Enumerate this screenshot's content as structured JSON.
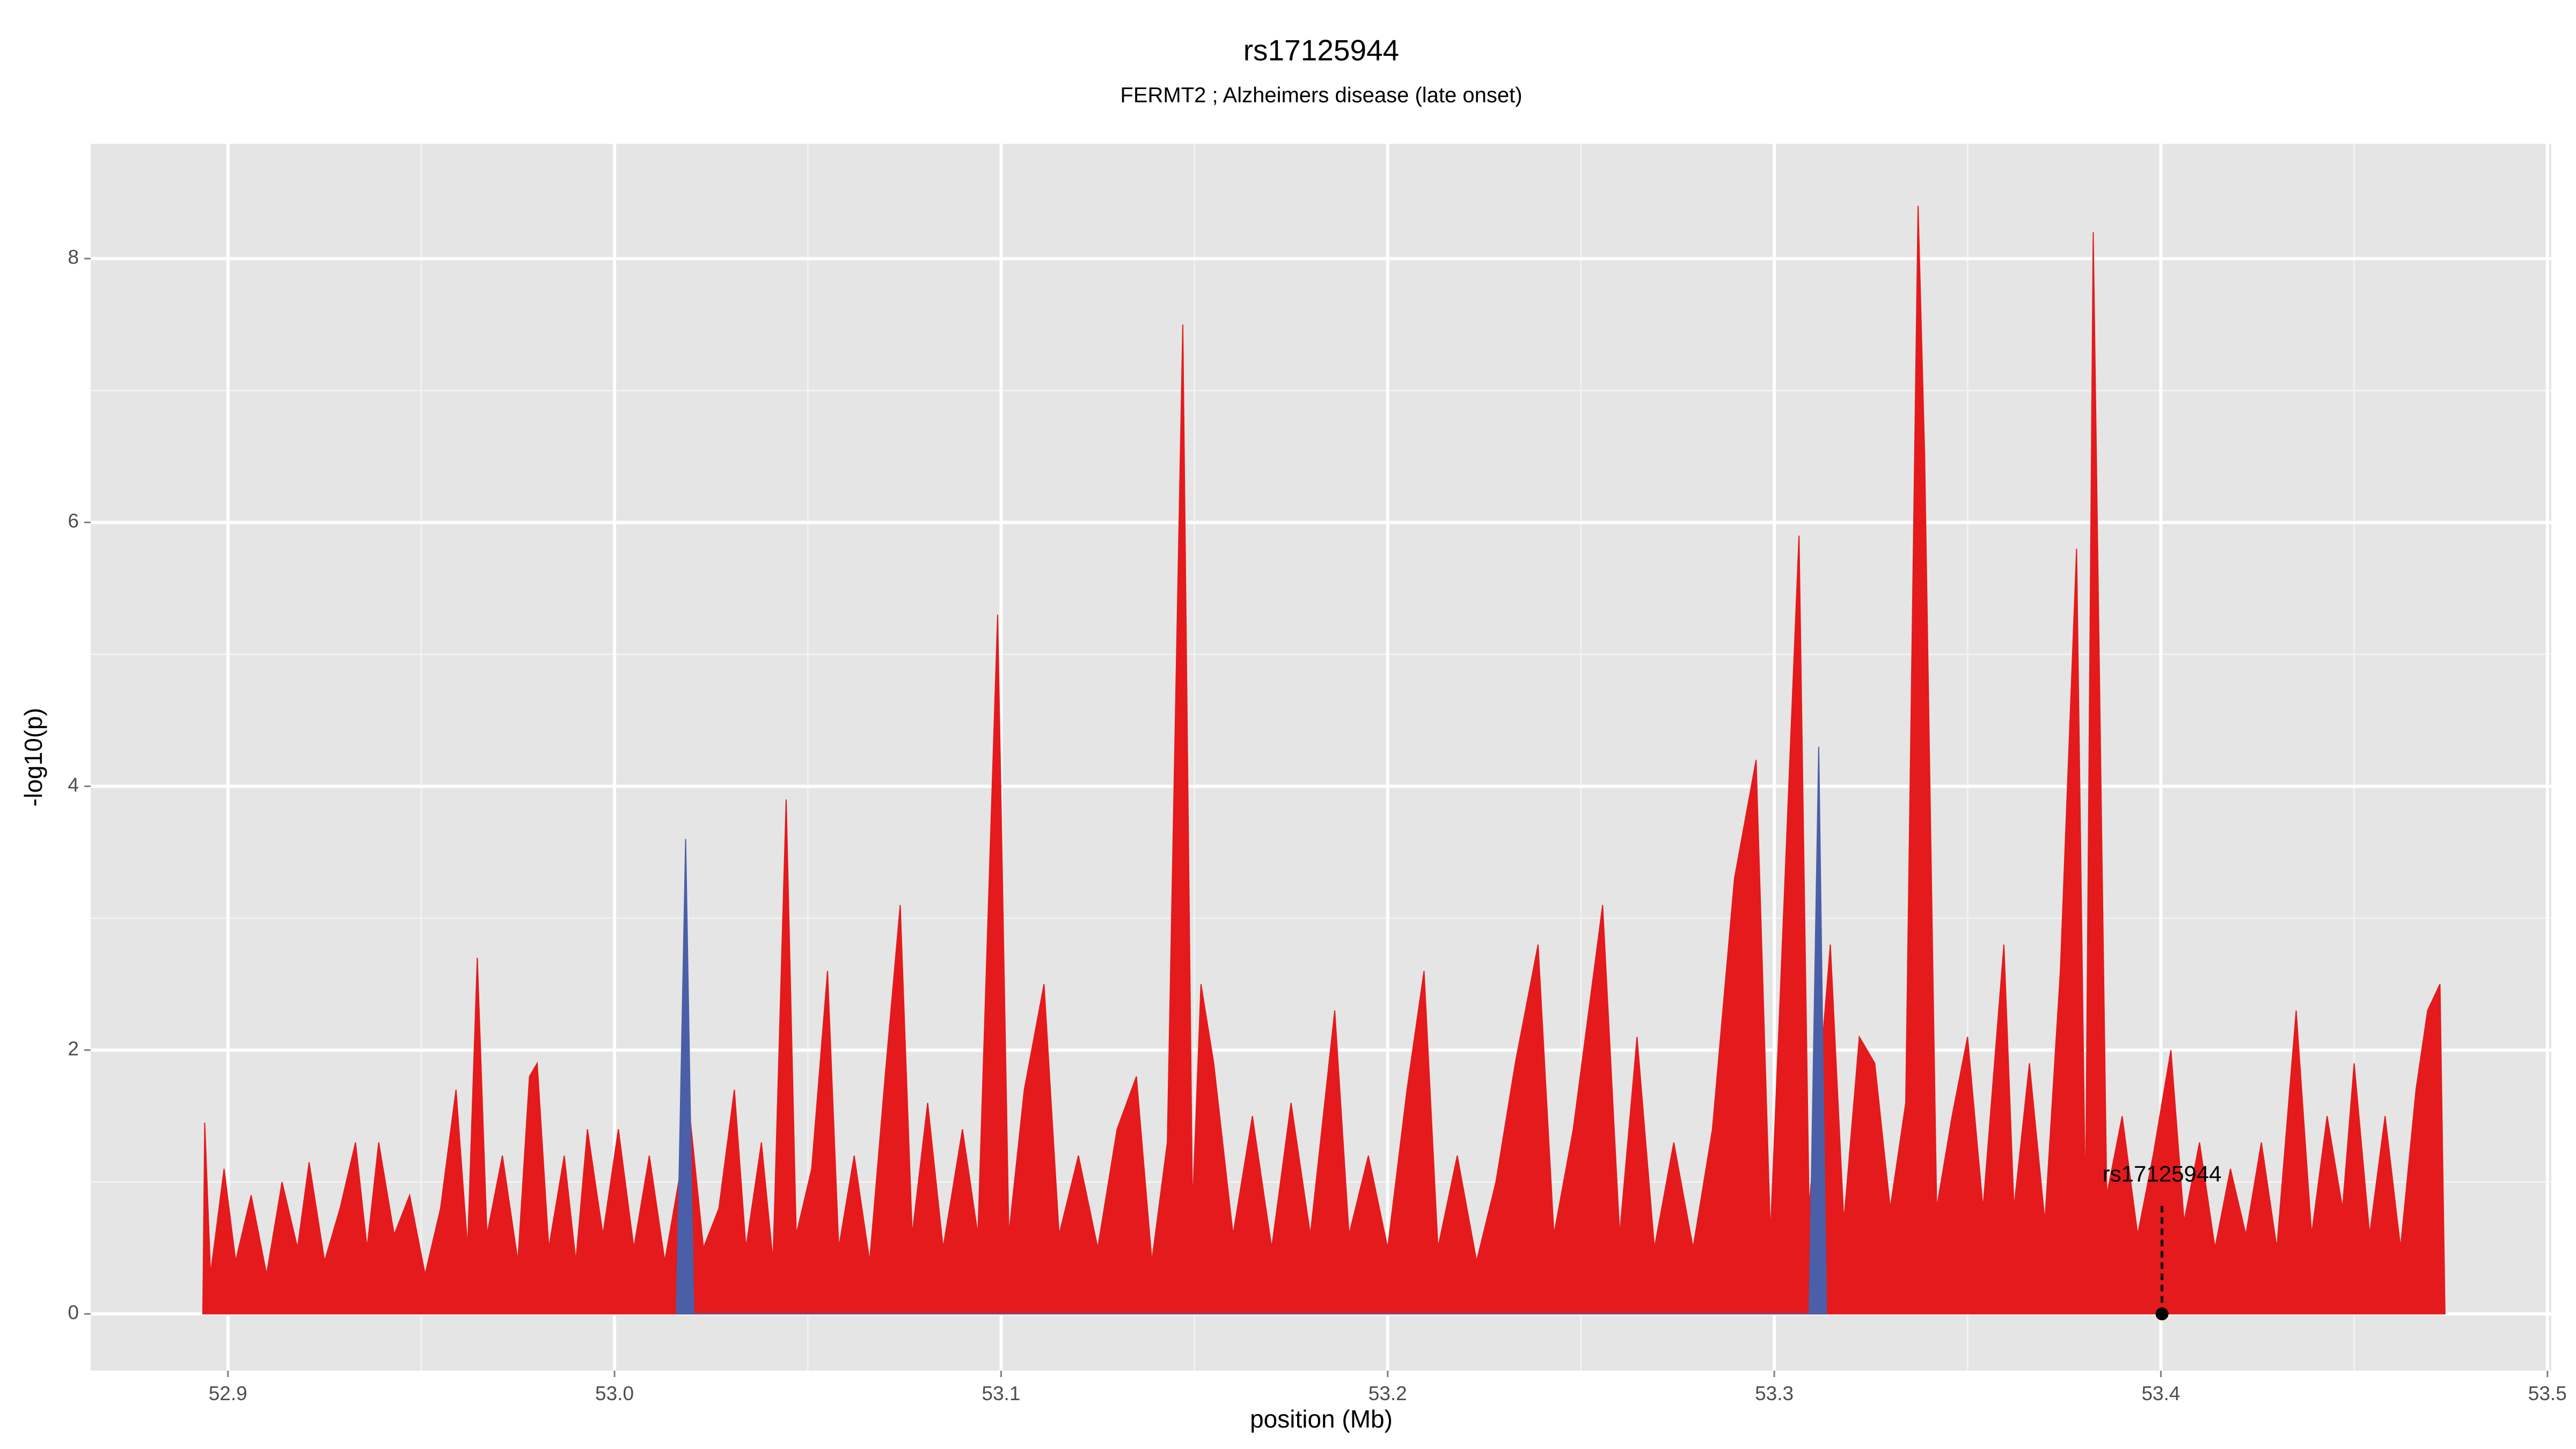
{
  "chart_data": {
    "type": "area",
    "title": "rs17125944",
    "subtitle": "FERMT2 ; Alzheimers disease (late onset)",
    "x_label": "position (Mb)",
    "y_label": "-log10(p)",
    "xlim": [
      52.8645,
      53.501
    ],
    "ylim": [
      -0.43,
      8.87
    ],
    "xticks": [
      52.9,
      {
        "value": 53.0,
        "label": "53.0"
      },
      53.1,
      53.2,
      53.3,
      53.4,
      53.5
    ],
    "yticks": [
      0,
      2,
      4,
      6,
      8
    ],
    "x_minor_grid": [
      52.95,
      53.05,
      53.15,
      53.25,
      53.35,
      53.45
    ],
    "y_minor_grid": [
      1,
      3,
      5,
      7
    ],
    "grid": true,
    "series": [
      {
        "color": "#e41a1c",
        "x": [
          52.8935,
          52.894,
          52.8955,
          52.899,
          52.902,
          52.906,
          52.91,
          52.914,
          52.918,
          52.921,
          52.925,
          52.929,
          52.933,
          52.936,
          52.939,
          52.943,
          52.947,
          52.951,
          52.955,
          52.959,
          52.962,
          52.9645,
          52.967,
          52.971,
          52.975,
          52.978,
          52.98,
          52.983,
          52.987,
          52.99,
          52.993,
          52.997,
          53.001,
          53.005,
          53.009,
          53.013,
          53.016,
          53.0195,
          53.023,
          53.027,
          53.031,
          53.034,
          53.038,
          53.041,
          53.0444,
          53.047,
          53.051,
          53.0551,
          53.058,
          53.062,
          53.066,
          53.07,
          53.0739,
          53.077,
          53.081,
          53.085,
          53.09,
          53.094,
          53.0991,
          53.102,
          53.106,
          53.1111,
          53.115,
          53.12,
          53.125,
          53.13,
          53.135,
          53.139,
          53.143,
          53.147,
          53.1495,
          53.1517,
          53.155,
          53.16,
          53.165,
          53.17,
          53.175,
          53.18,
          53.1863,
          53.19,
          53.195,
          53.2,
          53.205,
          53.2094,
          53.213,
          53.218,
          53.223,
          53.228,
          53.233,
          53.2389,
          53.243,
          53.248,
          53.2556,
          53.26,
          53.2645,
          53.269,
          53.274,
          53.279,
          53.284,
          53.2897,
          53.2953,
          53.299,
          53.3064,
          53.309,
          53.3145,
          53.318,
          53.322,
          53.326,
          53.33,
          53.334,
          53.3372,
          53.3389,
          53.342,
          53.346,
          53.35,
          53.354,
          53.3594,
          53.362,
          53.366,
          53.37,
          53.374,
          53.3782,
          53.3805,
          53.3825,
          53.386,
          53.39,
          53.394,
          53.398,
          53.4026,
          53.406,
          53.41,
          53.414,
          53.418,
          53.422,
          53.426,
          53.43,
          53.435,
          53.439,
          53.443,
          53.447,
          53.45,
          53.454,
          53.458,
          53.462,
          53.466,
          53.469,
          53.4722,
          53.4735
        ],
        "values": [
          0,
          1.45,
          0.3,
          1.1,
          0.4,
          0.9,
          0.3,
          1.0,
          0.5,
          1.15,
          0.4,
          0.8,
          1.3,
          0.5,
          1.3,
          0.6,
          0.9,
          0.3,
          0.8,
          1.7,
          0.5,
          2.7,
          0.6,
          1.2,
          0.4,
          1.8,
          1.9,
          0.5,
          1.2,
          0.4,
          1.4,
          0.6,
          1.4,
          0.5,
          1.2,
          0.4,
          0.9,
          1.5,
          0.5,
          0.8,
          1.7,
          0.5,
          1.3,
          0.4,
          3.9,
          0.6,
          1.1,
          2.6,
          0.5,
          1.2,
          0.4,
          1.8,
          3.1,
          0.6,
          1.6,
          0.5,
          1.4,
          0.6,
          5.3,
          0.6,
          1.7,
          2.5,
          0.6,
          1.2,
          0.5,
          1.4,
          1.8,
          0.4,
          1.3,
          7.5,
          0.8,
          2.5,
          1.9,
          0.6,
          1.5,
          0.5,
          1.6,
          0.6,
          2.3,
          0.6,
          1.2,
          0.5,
          1.7,
          2.6,
          0.5,
          1.2,
          0.4,
          1.0,
          1.9,
          2.8,
          0.6,
          1.4,
          3.1,
          0.6,
          2.1,
          0.5,
          1.3,
          0.5,
          1.4,
          3.3,
          4.2,
          0.6,
          5.9,
          0.8,
          2.8,
          0.7,
          2.1,
          1.9,
          0.8,
          1.6,
          8.4,
          6.5,
          0.8,
          1.5,
          2.1,
          0.8,
          2.8,
          0.8,
          1.9,
          0.7,
          2.6,
          5.8,
          0.8,
          8.2,
          0.9,
          1.5,
          0.6,
          1.2,
          2.0,
          0.7,
          1.3,
          0.5,
          1.1,
          0.6,
          1.3,
          0.5,
          2.3,
          0.6,
          1.5,
          0.8,
          1.9,
          0.6,
          1.5,
          0.5,
          1.7,
          2.3,
          2.5,
          0
        ]
      },
      {
        "color": "#4a5fa8",
        "x": [
          53.016,
          53.0184,
          53.0205,
          53.309,
          53.3115,
          53.3135
        ],
        "values": [
          0,
          3.6,
          0,
          0,
          4.3,
          0
        ]
      }
    ],
    "highlight": {
      "label": "rs17125944",
      "x": 53.4003,
      "y": 0
    }
  }
}
